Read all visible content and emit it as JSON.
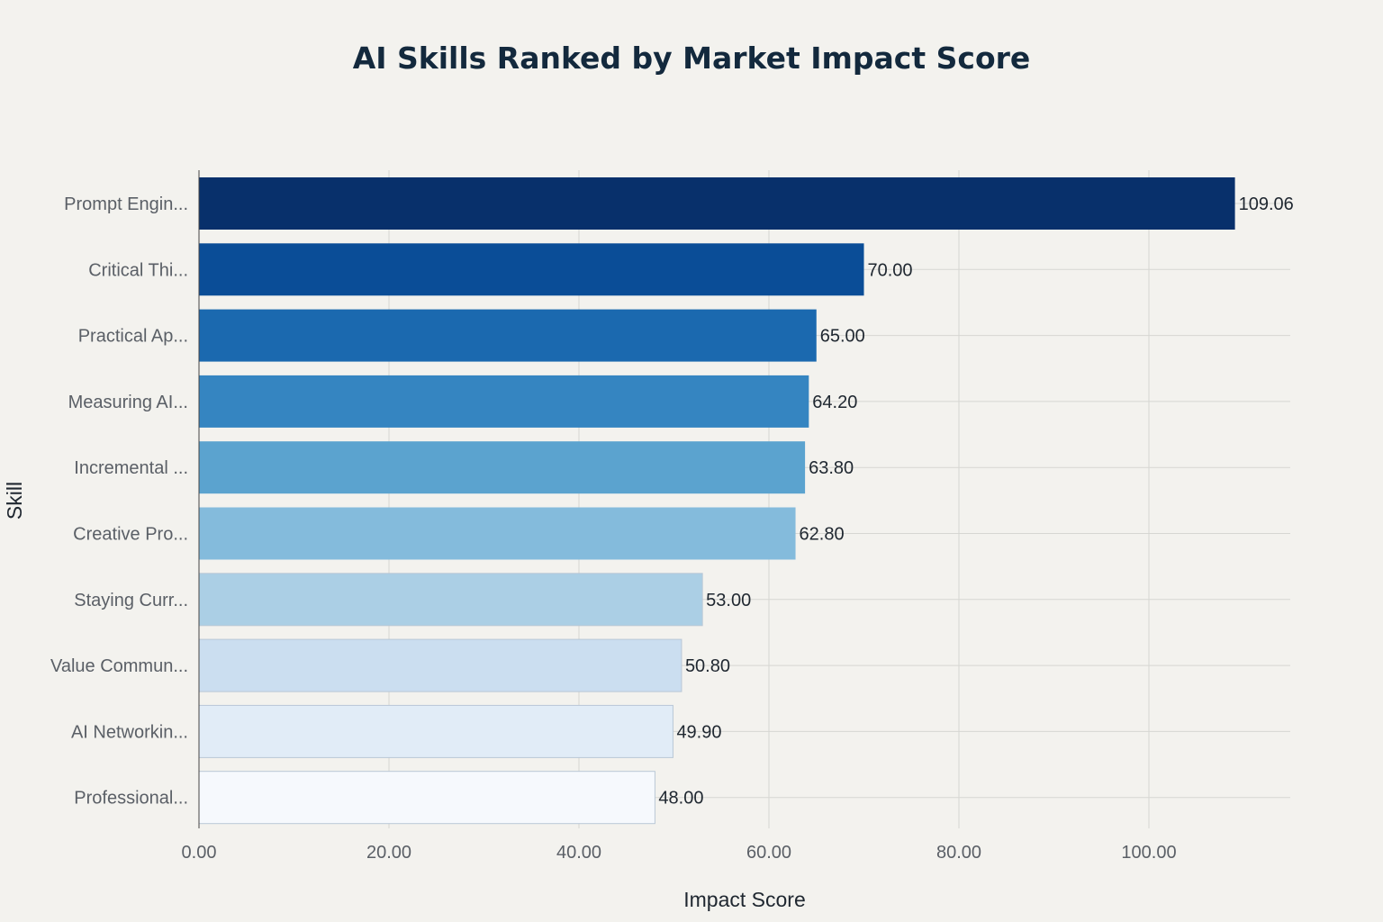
{
  "chart_data": {
    "type": "bar",
    "orientation": "horizontal",
    "title": "AI Skills Ranked by Market Impact Score",
    "xlabel": "Impact Score",
    "ylabel": "Skill",
    "xlim": [
      0,
      115
    ],
    "x_ticks": [
      0,
      20,
      40,
      60,
      80,
      100
    ],
    "x_tick_labels": [
      "0.00",
      "20.00",
      "40.00",
      "60.00",
      "80.00",
      "100.00"
    ],
    "grid": true,
    "legend": "none",
    "categories": [
      "Prompt Engin...",
      "Critical Thi...",
      "Practical Ap...",
      "Measuring AI...",
      "Incremental ...",
      "Creative Pro...",
      "Staying Curr...",
      "Value Commun...",
      "AI Networkin...",
      "Professional..."
    ],
    "values": [
      109.06,
      70.0,
      65.0,
      64.2,
      63.8,
      62.8,
      53.0,
      50.8,
      49.9,
      48.0
    ],
    "value_labels": [
      "109.06",
      "70.00",
      "65.00",
      "64.20",
      "63.80",
      "62.80",
      "53.00",
      "50.80",
      "49.90",
      "48.00"
    ],
    "colors": [
      "#08306b",
      "#0a4d97",
      "#1b69af",
      "#3585c1",
      "#5ba3cf",
      "#84bbdc",
      "#abcfe5",
      "#cbdef0",
      "#e1ecf7",
      "#f6f9fd"
    ]
  }
}
